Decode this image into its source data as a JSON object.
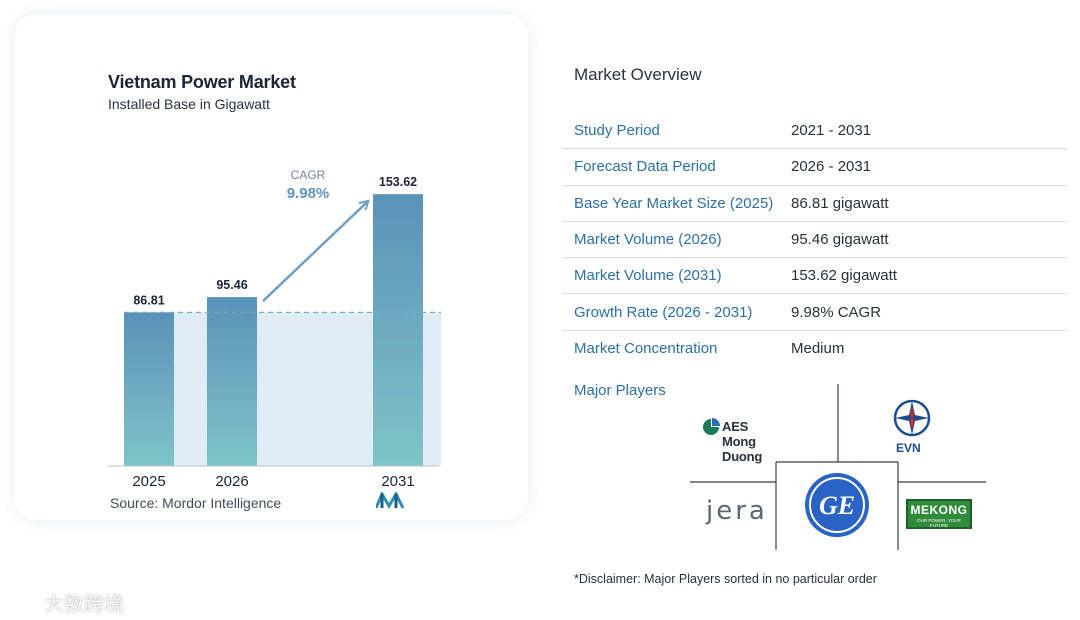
{
  "chart_data": {
    "type": "bar",
    "title": "Vietnam Power Market",
    "subtitle": "Installed Base in Gigawatt",
    "categories": [
      "2025",
      "2026",
      "2031"
    ],
    "values": [
      86.81,
      95.46,
      153.62
    ],
    "value_labels": [
      "86.81",
      "95.46",
      "153.62"
    ],
    "cagr_label": "CAGR",
    "cagr_value": "9.98%",
    "ylim": [
      0,
      165
    ],
    "baseline_reference": 86.81,
    "colors": {
      "bar_top": "#5b92b8",
      "bar_bottom": "#7ec4c8",
      "shade": "#d6e6f0",
      "arrow": "#6fa0c2",
      "cagr_text": "#5f93bb"
    }
  },
  "source": "Source:  Mordor Intelligence",
  "overview": {
    "title": "Market Overview",
    "rows": [
      {
        "label": "Study Period",
        "value": "2021 - 2031"
      },
      {
        "label": "Forecast Data Period",
        "value": "2026 - 2031"
      },
      {
        "label": "Base Year Market Size (2025)",
        "value": "86.81 gigawatt"
      },
      {
        "label": "Market Volume (2026)",
        "value": "95.46 gigawatt"
      },
      {
        "label": "Market Volume (2031)",
        "value": "153.62 gigawatt"
      },
      {
        "label": "Growth Rate (2026 - 2031)",
        "value": "9.98% CAGR"
      },
      {
        "label": "Market Concentration",
        "value": "Medium"
      }
    ],
    "players_label": "Major Players",
    "players": {
      "aes": "AES Mong Duong",
      "evn": "EVN",
      "jera": "JERA",
      "ge": "GE",
      "mekong": "MEKONG",
      "mekong_tagline": "OUR POWER, YOUR FUTURE"
    },
    "disclaimer": "*Disclaimer: Major Players sorted in no particular order"
  },
  "watermark": "大数跨境",
  "theme": {
    "label_blue": "#2d6fa3",
    "divider": "#d9dde3"
  }
}
